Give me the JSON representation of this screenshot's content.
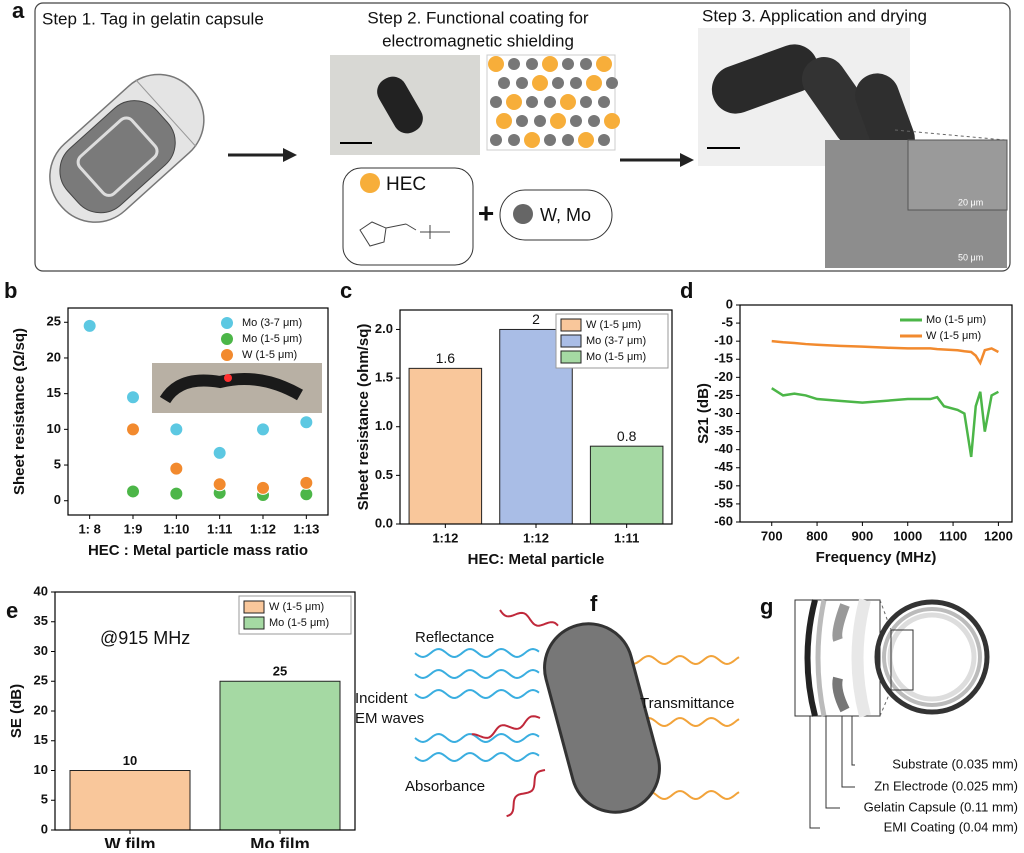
{
  "panel_labels": [
    "a",
    "b",
    "c",
    "d",
    "e",
    "f",
    "g"
  ],
  "figure_a": {
    "step1": "Step 1. Tag in gelatin capsule",
    "step2": [
      "Step 2. Functional coating for",
      "electromagnetic shielding"
    ],
    "step3": "Step 3. Application and drying",
    "hec": "HEC",
    "plus": "+",
    "metals": "W, Mo",
    "scale_inner": "20 μm",
    "scale_outer": "50 μm"
  },
  "chart_data": [
    {
      "type": "scatter",
      "xlabel": "HEC : Metal particle mass ratio",
      "ylabel": "Sheet resistance (Ω/sq)",
      "categories": [
        "1: 8",
        "1:9",
        "1:10",
        "1:11",
        "1:12",
        "1:13"
      ],
      "series": [
        {
          "name": "Mo (3-7 μm)",
          "color": "#5cc8e2",
          "values": [
            24.5,
            14.5,
            10,
            6.7,
            10,
            11
          ]
        },
        {
          "name": "Mo (1-5 μm)",
          "color": "#4cb648",
          "values": [
            null,
            1.3,
            1,
            1.1,
            0.8,
            0.9
          ]
        },
        {
          "name": "W (1-5 μm)",
          "color": "#f28a2e",
          "values": [
            null,
            10,
            4.5,
            2.3,
            1.8,
            2.5
          ]
        }
      ],
      "ylim": [
        -2,
        27
      ],
      "yticks": [
        0,
        5,
        10,
        15,
        20,
        25
      ],
      "legend": "upper right"
    },
    {
      "type": "bar",
      "xlabel": "HEC: Metal particle",
      "ylabel": "Sheet resistance (ohm/sq)",
      "categories": [
        "1:12",
        "1:12",
        "1:11"
      ],
      "series": [
        {
          "name": "W (1-5 μm)",
          "color": "#f9c79b",
          "values": [
            1.6,
            null,
            null
          ]
        },
        {
          "name": "Mo (3-7 μm)",
          "color": "#a9bde6",
          "values": [
            null,
            2,
            null
          ]
        },
        {
          "name": "Mo (1-5 μm)",
          "color": "#a5d9a3",
          "values": [
            null,
            null,
            0.8
          ]
        }
      ],
      "ylim": [
        0,
        2.2
      ],
      "yticks": [
        {
          "value": 0,
          "label": "0.0"
        },
        0.5,
        {
          "value": 1,
          "label": "1.0"
        },
        1.5,
        {
          "value": 2,
          "label": "2.0"
        }
      ],
      "legend": "upper right"
    },
    {
      "type": "line",
      "xlabel": "Frequency (MHz)",
      "ylabel": "S21 (dB)",
      "x": [
        700,
        725,
        750,
        775,
        800,
        850,
        900,
        950,
        1000,
        1050,
        1065,
        1080,
        1110,
        1125,
        1140,
        1150,
        1160,
        1170,
        1185,
        1200
      ],
      "series": [
        {
          "name": "Mo (1-5 μm)",
          "color": "#4cb648",
          "values": [
            -23,
            -25,
            -24.5,
            -25,
            -26,
            -26.5,
            -27,
            -26.5,
            -26,
            -26,
            -25.5,
            -28,
            -29,
            -30,
            -42,
            -28,
            -24,
            -35,
            -25,
            -24
          ]
        },
        {
          "name": "W (1-5 μm)",
          "color": "#f28a2e",
          "values": [
            -10,
            -10.3,
            -10.5,
            -10.8,
            -11,
            -11.3,
            -11.5,
            -11.8,
            -12,
            -12,
            -12.2,
            -12.3,
            -12.5,
            -12.8,
            -13,
            -14,
            -16,
            -12.5,
            -12,
            -13
          ]
        }
      ],
      "xlim": [
        630,
        1230
      ],
      "xticks": [
        700,
        800,
        900,
        1000,
        1100,
        1200
      ],
      "ylim": [
        -60,
        0
      ],
      "yticks": [
        0,
        -5,
        -10,
        -15,
        -20,
        -25,
        -30,
        -35,
        -40,
        -45,
        -50,
        -55,
        -60
      ],
      "legend": "upper right"
    },
    {
      "type": "bar",
      "ylabel": "SE (dB)",
      "annotation": "@915 MHz",
      "categories": [
        "W film",
        "Mo film"
      ],
      "series": [
        {
          "name": "W (1-5 μm)",
          "color": "#f9c79b",
          "values": [
            10,
            null
          ]
        },
        {
          "name": "Mo (1-5 μm)",
          "color": "#a5d9a3",
          "values": [
            null,
            25
          ]
        }
      ],
      "ylim": [
        0,
        40
      ],
      "yticks": [
        0,
        5,
        10,
        15,
        20,
        25,
        30,
        35,
        40
      ],
      "legend": "upper right"
    }
  ],
  "figure_f": {
    "reflectance": "Reflectance",
    "incident": [
      "Incident",
      "EM waves"
    ],
    "transmittance": "Transmittance",
    "absorbance": "Absorbance"
  },
  "figure_g": {
    "layers": [
      "Substrate (0.035 mm)",
      "Zn Electrode (0.025 mm)",
      "Gelatin Capsule (0.11 mm)",
      "EMI Coating (0.04 mm)"
    ]
  }
}
